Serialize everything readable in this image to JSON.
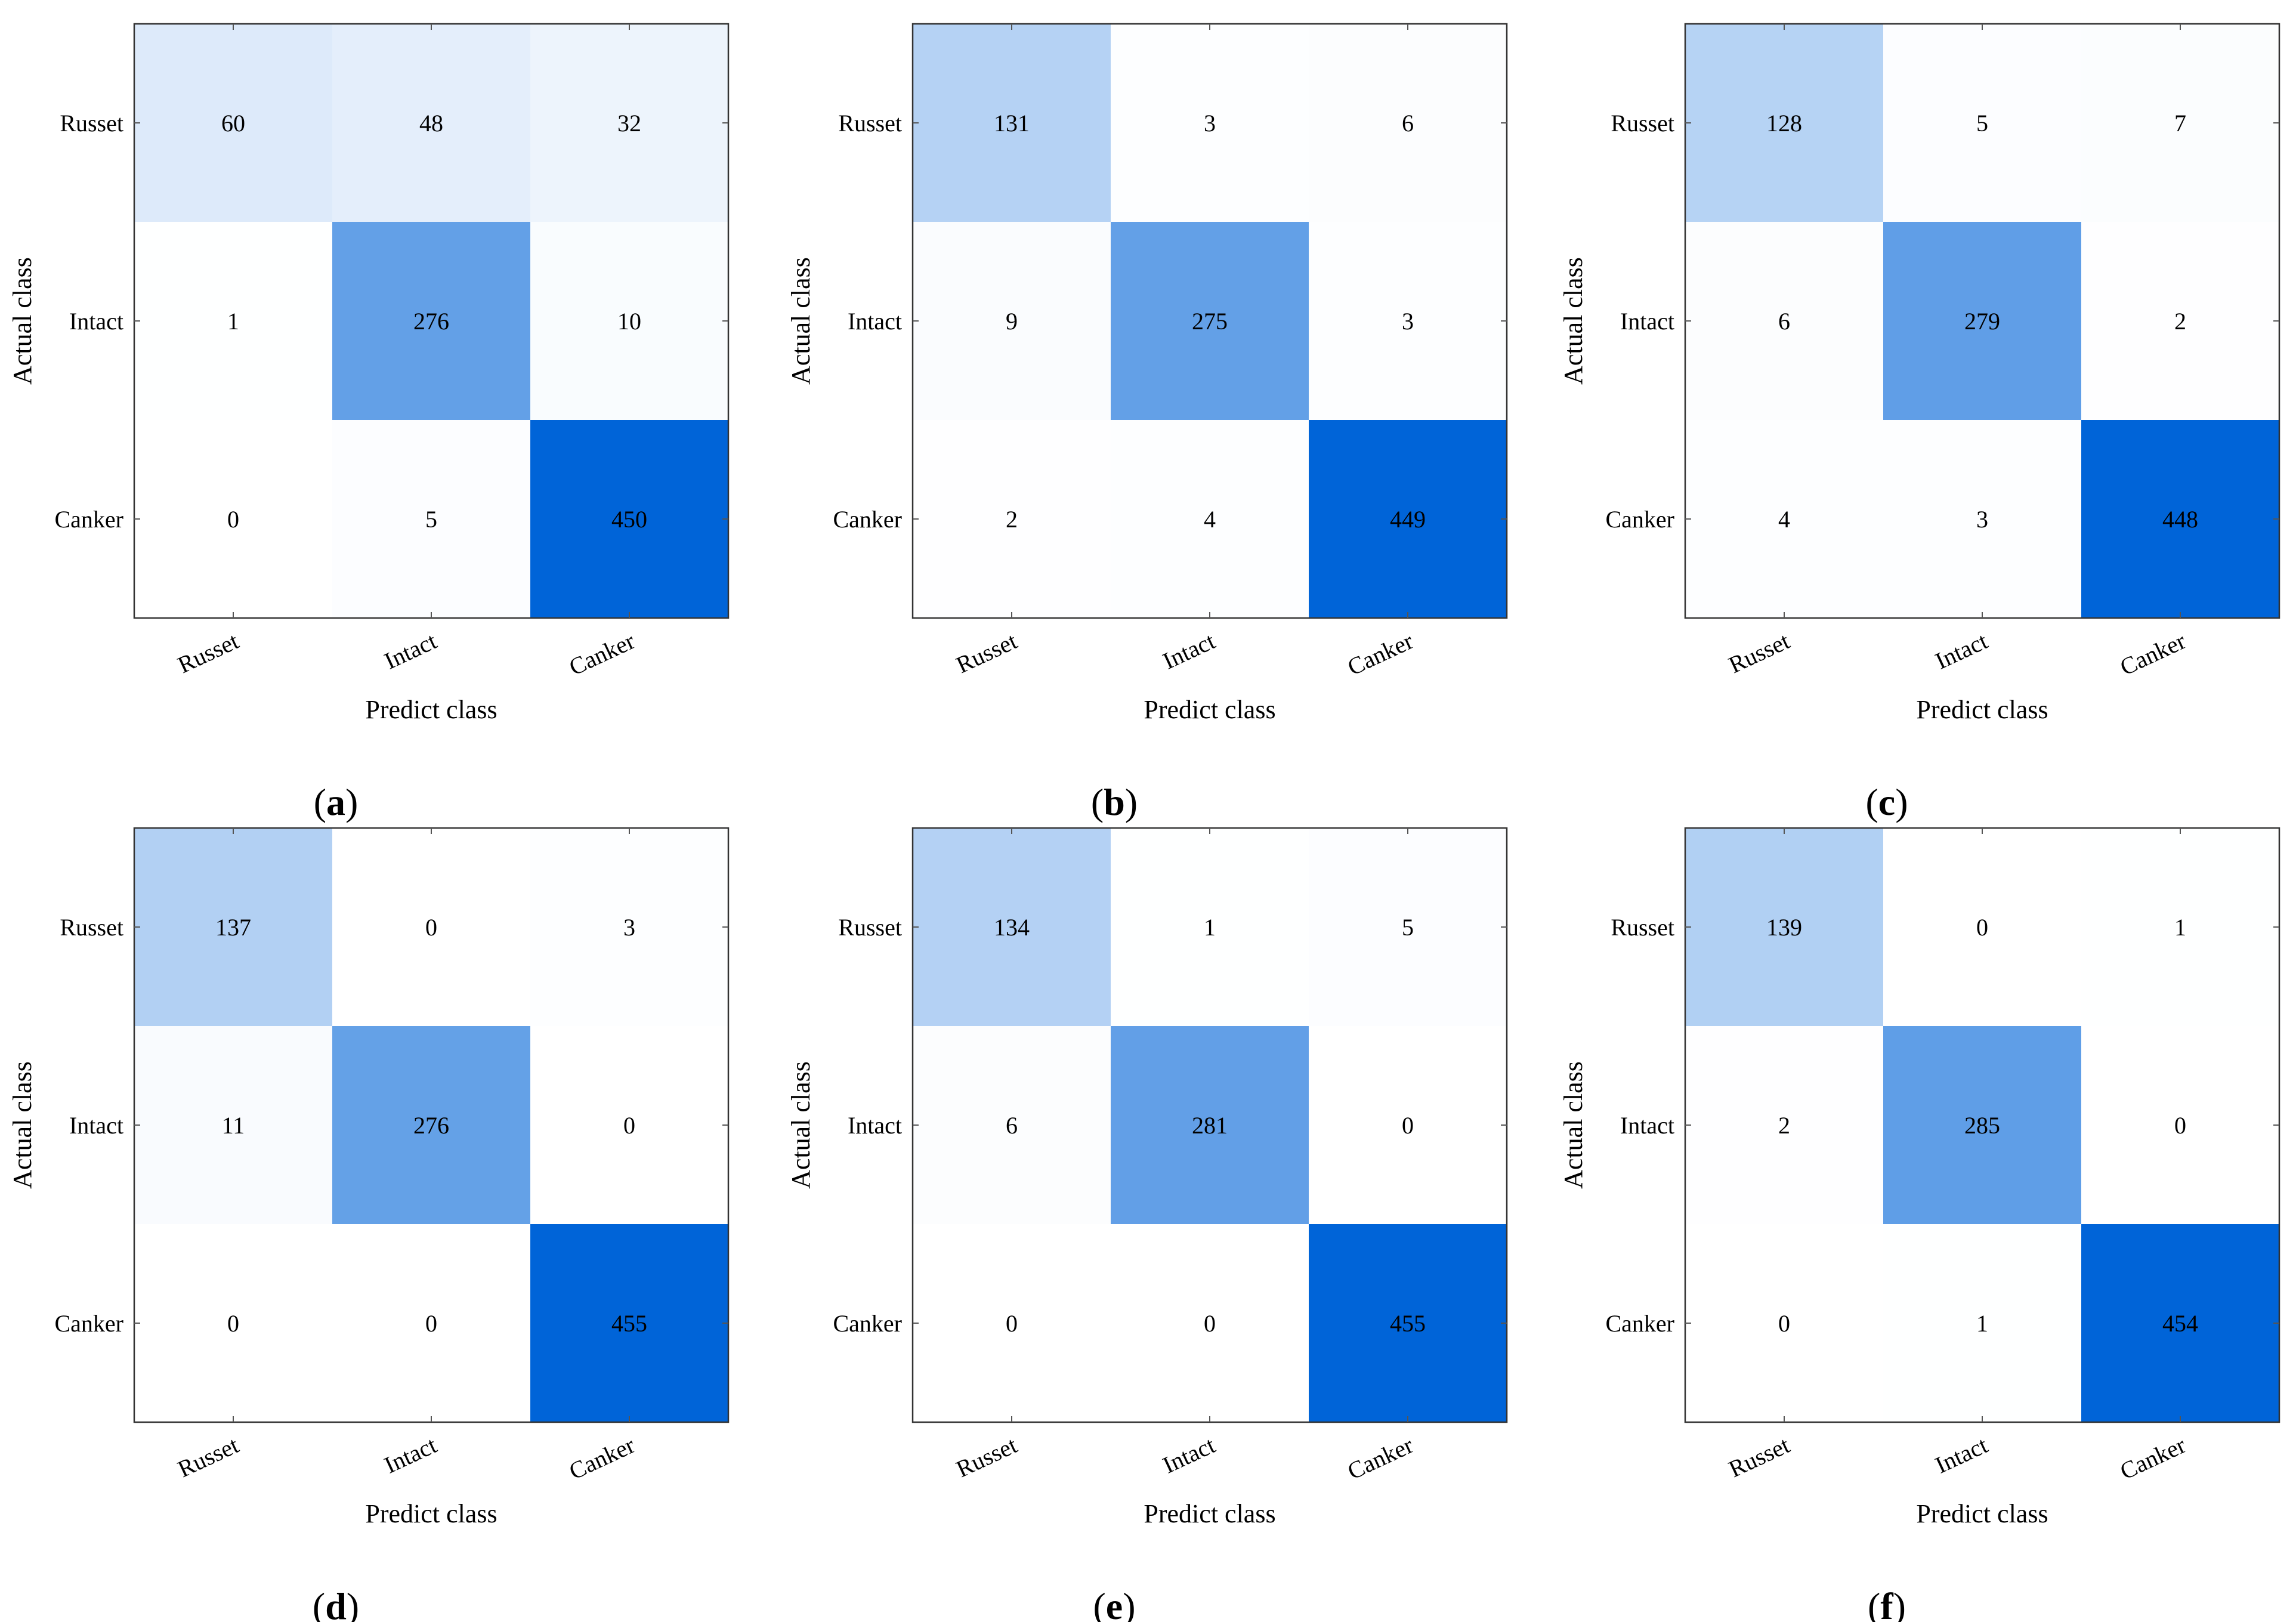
{
  "chart_data": [
    {
      "type": "heatmap",
      "panel_label": "a",
      "x_categories": [
        "Russet",
        "Intact",
        "Canker"
      ],
      "y_categories": [
        "Russet",
        "Intact",
        "Canker"
      ],
      "xlabel": "Predict class",
      "ylabel": "Actual class",
      "values": [
        [
          60,
          48,
          32
        ],
        [
          1,
          276,
          10
        ],
        [
          0,
          5,
          450
        ]
      ]
    },
    {
      "type": "heatmap",
      "panel_label": "b",
      "x_categories": [
        "Russet",
        "Intact",
        "Canker"
      ],
      "y_categories": [
        "Russet",
        "Intact",
        "Canker"
      ],
      "xlabel": "Predict class",
      "ylabel": "Actual class",
      "values": [
        [
          131,
          3,
          6
        ],
        [
          9,
          275,
          3
        ],
        [
          2,
          4,
          449
        ]
      ]
    },
    {
      "type": "heatmap",
      "panel_label": "c",
      "x_categories": [
        "Russet",
        "Intact",
        "Canker"
      ],
      "y_categories": [
        "Russet",
        "Intact",
        "Canker"
      ],
      "xlabel": "Predict class",
      "ylabel": "Actual class",
      "values": [
        [
          128,
          5,
          7
        ],
        [
          6,
          279,
          2
        ],
        [
          4,
          3,
          448
        ]
      ]
    },
    {
      "type": "heatmap",
      "panel_label": "d",
      "x_categories": [
        "Russet",
        "Intact",
        "Canker"
      ],
      "y_categories": [
        "Russet",
        "Intact",
        "Canker"
      ],
      "xlabel": "Predict class",
      "ylabel": "Actual class",
      "values": [
        [
          137,
          0,
          3
        ],
        [
          11,
          276,
          0
        ],
        [
          0,
          0,
          455
        ]
      ]
    },
    {
      "type": "heatmap",
      "panel_label": "e",
      "x_categories": [
        "Russet",
        "Intact",
        "Canker"
      ],
      "y_categories": [
        "Russet",
        "Intact",
        "Canker"
      ],
      "xlabel": "Predict class",
      "ylabel": "Actual class",
      "values": [
        [
          134,
          1,
          5
        ],
        [
          6,
          281,
          0
        ],
        [
          0,
          0,
          455
        ]
      ]
    },
    {
      "type": "heatmap",
      "panel_label": "f",
      "x_categories": [
        "Russet",
        "Intact",
        "Canker"
      ],
      "y_categories": [
        "Russet",
        "Intact",
        "Canker"
      ],
      "xlabel": "Predict class",
      "ylabel": "Actual class",
      "values": [
        [
          139,
          0,
          1
        ],
        [
          2,
          285,
          0
        ],
        [
          0,
          1,
          454
        ]
      ]
    }
  ],
  "colors": {
    "low": "#ffffff",
    "high": "#0064d8",
    "axis": "#333333",
    "tick": "#555555"
  }
}
